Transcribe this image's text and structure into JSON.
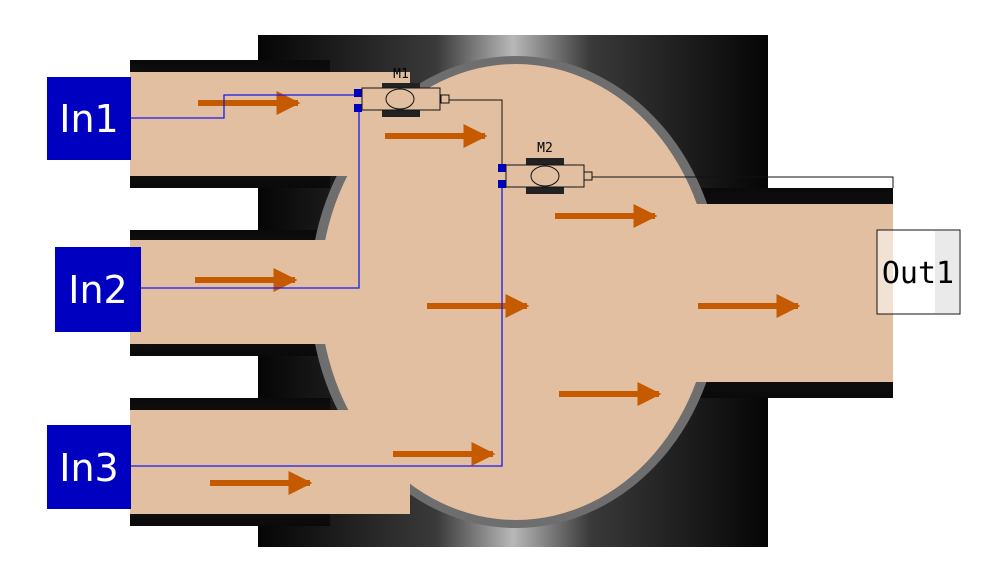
{
  "inputs": [
    {
      "id": "in1",
      "label": "In1"
    },
    {
      "id": "in2",
      "label": "In2"
    },
    {
      "id": "in3",
      "label": "In3"
    }
  ],
  "output": {
    "label": "Out1"
  },
  "mixers": [
    {
      "id": "m1",
      "label": "M1"
    },
    {
      "id": "m2",
      "label": "M2"
    }
  ],
  "colors": {
    "fluid": "#e2bfa0",
    "pipe_wall": "#111111",
    "flow_arrow": "#c55a00",
    "port_block": "#0000c0",
    "signal_line": "#1a1aee"
  }
}
